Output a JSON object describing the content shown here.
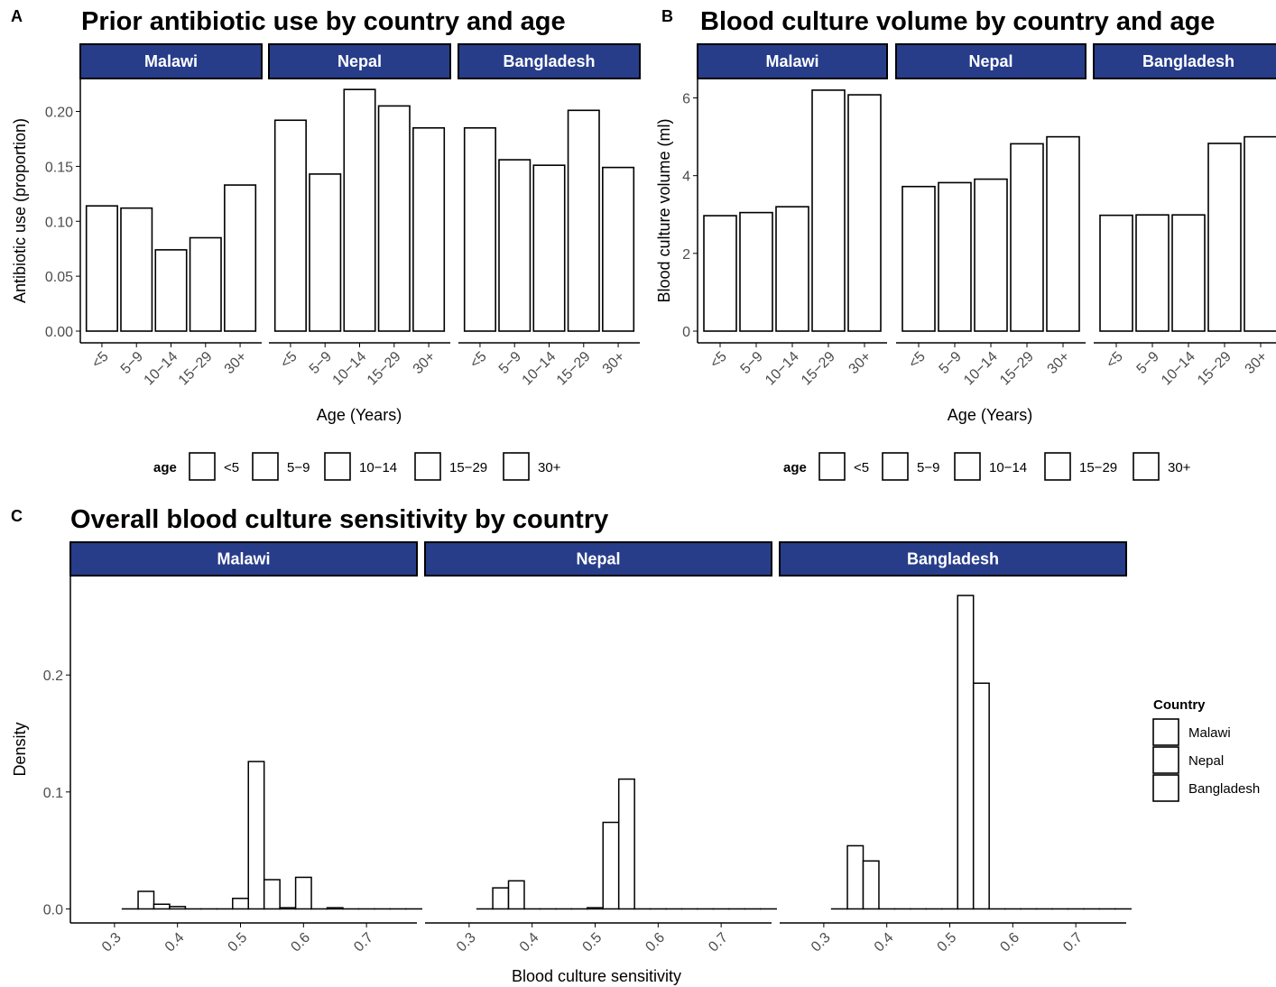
{
  "colors": {
    "strip_fill": "#273d8a",
    "strip_border": "#000000",
    "bar_fill": "#ffffff",
    "bar_stroke": "#000000",
    "axis": "#000000",
    "tick_text": "#4d4d4d"
  },
  "chart_data": [
    {
      "panel": "A",
      "type": "bar",
      "title": "Prior antibiotic use by country and age",
      "xlabel": "Age (Years)",
      "ylabel": "Antibiotic use (proportion)",
      "ylim": [
        0,
        0.23
      ],
      "yticks": [
        0.0,
        0.05,
        0.1,
        0.15,
        0.2
      ],
      "ytick_labels": [
        "0.00",
        "0.05",
        "0.10",
        "0.15",
        "0.20"
      ],
      "categories": [
        "<5",
        "5−9",
        "10−14",
        "15−29",
        "30+"
      ],
      "facets": [
        {
          "name": "Malawi",
          "values": [
            0.114,
            0.112,
            0.074,
            0.085,
            0.133
          ]
        },
        {
          "name": "Nepal",
          "values": [
            0.192,
            0.143,
            0.22,
            0.205,
            0.185
          ]
        },
        {
          "name": "Bangladesh",
          "values": [
            0.185,
            0.156,
            0.151,
            0.201,
            0.149
          ]
        }
      ],
      "legend": {
        "title": "age",
        "items": [
          "<5",
          "5−9",
          "10−14",
          "15−29",
          "30+"
        ],
        "position": "bottom"
      },
      "grid": false
    },
    {
      "panel": "B",
      "type": "bar",
      "title": "Blood culture volume by country and age",
      "xlabel": "Age (Years)",
      "ylabel": "Blood culture volume (ml)",
      "ylim": [
        0,
        6.5
      ],
      "yticks": [
        0,
        2,
        4,
        6
      ],
      "ytick_labels": [
        "0",
        "2",
        "4",
        "6"
      ],
      "categories": [
        "<5",
        "5−9",
        "10−14",
        "15−29",
        "30+"
      ],
      "facets": [
        {
          "name": "Malawi",
          "values": [
            2.97,
            3.05,
            3.2,
            6.2,
            6.08
          ]
        },
        {
          "name": "Nepal",
          "values": [
            3.72,
            3.82,
            3.91,
            4.82,
            5.0
          ]
        },
        {
          "name": "Bangladesh",
          "values": [
            2.98,
            2.99,
            2.99,
            4.83,
            5.0
          ]
        }
      ],
      "legend": {
        "title": "age",
        "items": [
          "<5",
          "5−9",
          "10−14",
          "15−29",
          "30+"
        ],
        "position": "bottom"
      },
      "grid": false
    },
    {
      "panel": "C",
      "type": "bar",
      "title": "Overall blood culture sensitivity by country",
      "xlabel": "Blood culture sensitivity",
      "ylabel": "Density",
      "xlim": [
        0.23,
        0.78
      ],
      "ylim": [
        -0.012,
        0.285
      ],
      "xticks": [
        0.3,
        0.4,
        0.5,
        0.6,
        0.7
      ],
      "xtick_labels": [
        "0.3",
        "0.4",
        "0.5",
        "0.6",
        "0.7"
      ],
      "yticks": [
        0.0,
        0.1,
        0.2
      ],
      "ytick_labels": [
        "0.0",
        "0.1",
        "0.2"
      ],
      "bin_width": 0.025,
      "bin_starts": [
        0.3125,
        0.3375,
        0.3625,
        0.3875,
        0.4125,
        0.4375,
        0.4625,
        0.4875,
        0.5125,
        0.5375,
        0.5625,
        0.5875,
        0.6125,
        0.6375,
        0.6625,
        0.6875,
        0.7125,
        0.7375,
        0.7625
      ],
      "facets": [
        {
          "name": "Malawi",
          "values": [
            0.0,
            0.015,
            0.004,
            0.002,
            0.0,
            0.0,
            0.0,
            0.009,
            0.126,
            0.025,
            0.001,
            0.027,
            0.0,
            0.001,
            0.0,
            0.0,
            0.0,
            0.0,
            0.0
          ]
        },
        {
          "name": "Nepal",
          "values": [
            0.0,
            0.018,
            0.024,
            0.0,
            0.0,
            0.0,
            0.0,
            0.001,
            0.074,
            0.111,
            0.0,
            0.0,
            0.0,
            0.0,
            0.0,
            0.0,
            0.0,
            0.0,
            0.0
          ]
        },
        {
          "name": "Bangladesh",
          "values": [
            0.0,
            0.054,
            0.041,
            0.0,
            0.0,
            0.0,
            0.0,
            0.0,
            0.268,
            0.193,
            0.0,
            0.0,
            0.0,
            0.0,
            0.0,
            0.0,
            0.0,
            0.0,
            0.0
          ]
        }
      ],
      "legend": {
        "title": "Country",
        "items": [
          "Malawi",
          "Nepal",
          "Bangladesh"
        ],
        "position": "right"
      },
      "grid": false
    }
  ]
}
